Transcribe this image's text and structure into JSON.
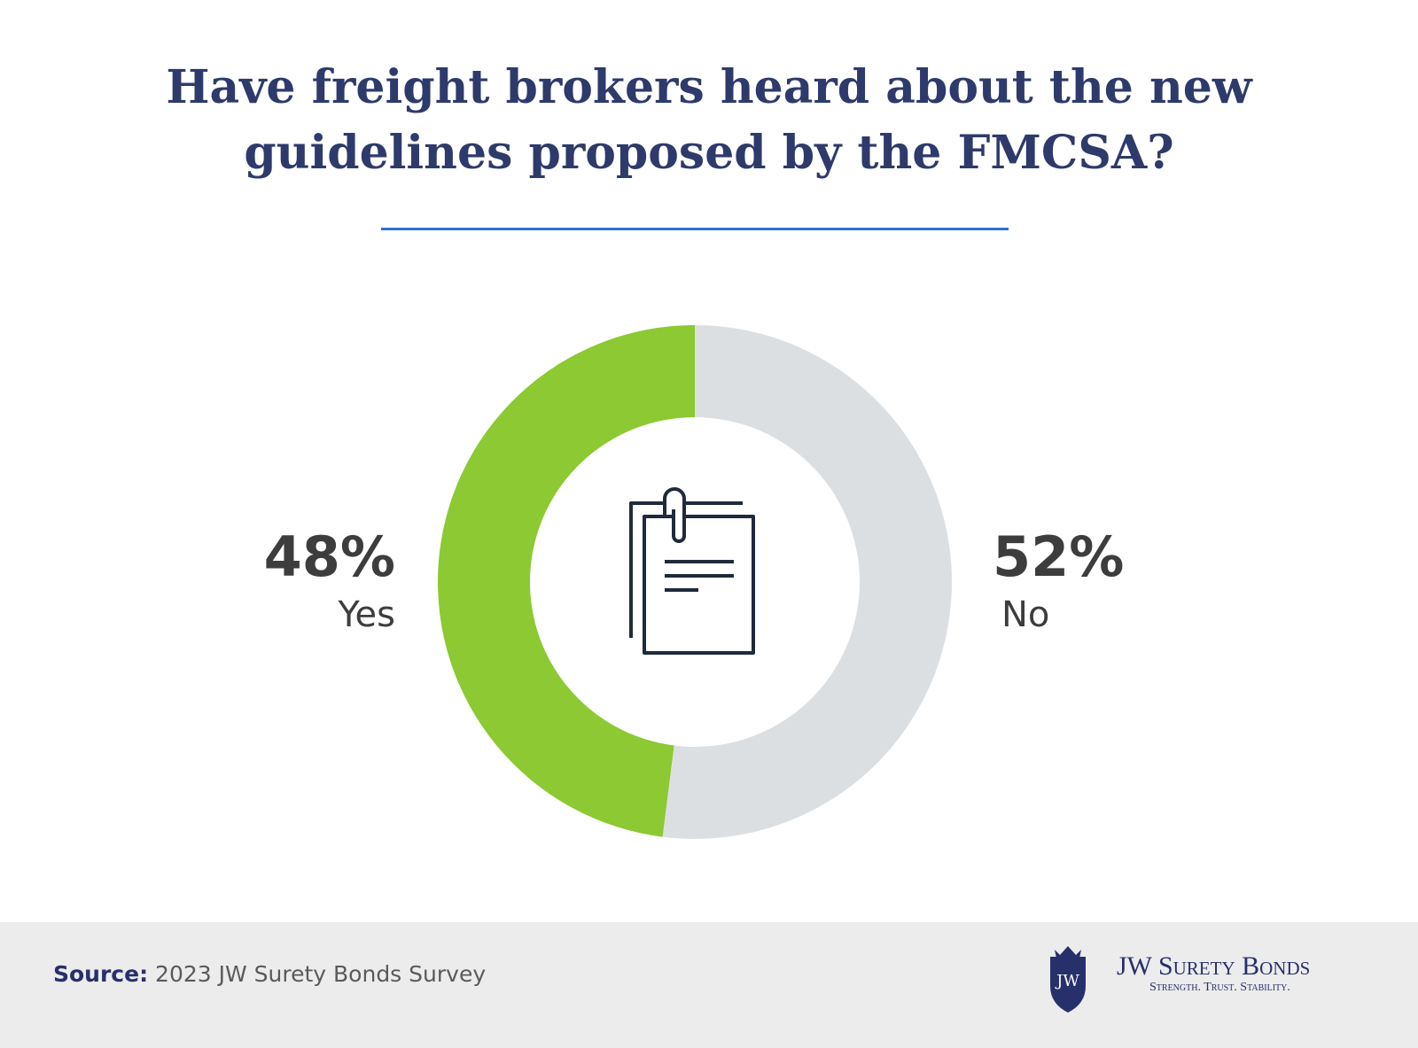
{
  "chart_data": {
    "type": "donut",
    "title": "Have freight brokers heard about the new guidelines proposed by the FMCSA?",
    "categories": [
      "Yes",
      "No"
    ],
    "values": [
      48,
      52
    ],
    "value_labels": [
      "48%",
      "52%"
    ],
    "colors": [
      "#8cc932",
      "#dcdfe2"
    ],
    "source_label": "Source:",
    "source": "2023 JW Surety Bonds Survey"
  },
  "logo": {
    "name": "JW Surety Bonds",
    "tagline": "Strength. Trust. Stability.",
    "monogram": "JW"
  }
}
